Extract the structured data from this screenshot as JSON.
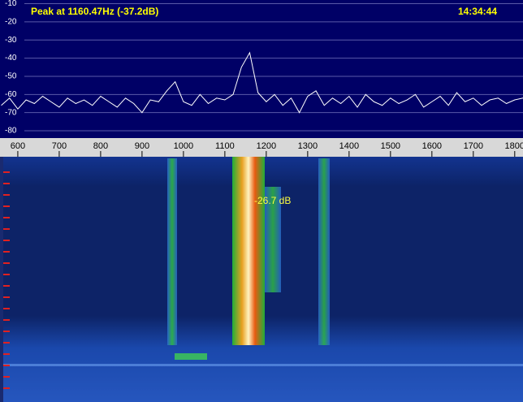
{
  "chart_data": {
    "type": "line",
    "title": "Peak at  1160.47Hz (-37.2dB)",
    "subtitle": "14:34:44",
    "annotations": [
      "-26.7 dB"
    ],
    "x": [
      560,
      580,
      600,
      620,
      640,
      660,
      680,
      700,
      720,
      740,
      760,
      780,
      800,
      820,
      840,
      860,
      880,
      900,
      920,
      940,
      960,
      980,
      1000,
      1020,
      1040,
      1060,
      1080,
      1100,
      1120,
      1140,
      1160,
      1180,
      1200,
      1220,
      1240,
      1260,
      1280,
      1300,
      1320,
      1340,
      1360,
      1380,
      1400,
      1420,
      1440,
      1460,
      1480,
      1500,
      1520,
      1540,
      1560,
      1580,
      1600,
      1620,
      1640,
      1660,
      1680,
      1700,
      1720,
      1740,
      1760,
      1780,
      1800,
      1820
    ],
    "series": [
      {
        "color": "#ffffff",
        "values": [
          -66,
          -62,
          -68,
          -63,
          -65,
          -61,
          -64,
          -67,
          -62,
          -65,
          -63,
          -66,
          -61,
          -64,
          -67,
          -62,
          -65,
          -70,
          -63,
          -64,
          -58,
          -53,
          -64,
          -66,
          -60,
          -65,
          -62,
          -63,
          -60,
          -45,
          -37,
          -59,
          -64,
          -60,
          -66,
          -62,
          -70,
          -61,
          -58,
          -66,
          -62,
          -65,
          -61,
          -67,
          -60,
          -64,
          -66,
          -62,
          -65,
          -63,
          -60,
          -67,
          -64,
          -61,
          -66,
          -59,
          -64,
          -62,
          -66,
          -63,
          -62,
          -65,
          -63,
          -62
        ]
      }
    ],
    "xlim": [
      557,
      1820
    ],
    "xticks": [
      600,
      700,
      800,
      900,
      1000,
      1100,
      1200,
      1300,
      1400,
      1500,
      1600,
      1700,
      1800
    ],
    "ylim": [
      -84,
      -8
    ],
    "yticks": [
      -10,
      -20,
      -30,
      -40,
      -50,
      -60,
      -70,
      -80
    ],
    "grid": true
  }
}
